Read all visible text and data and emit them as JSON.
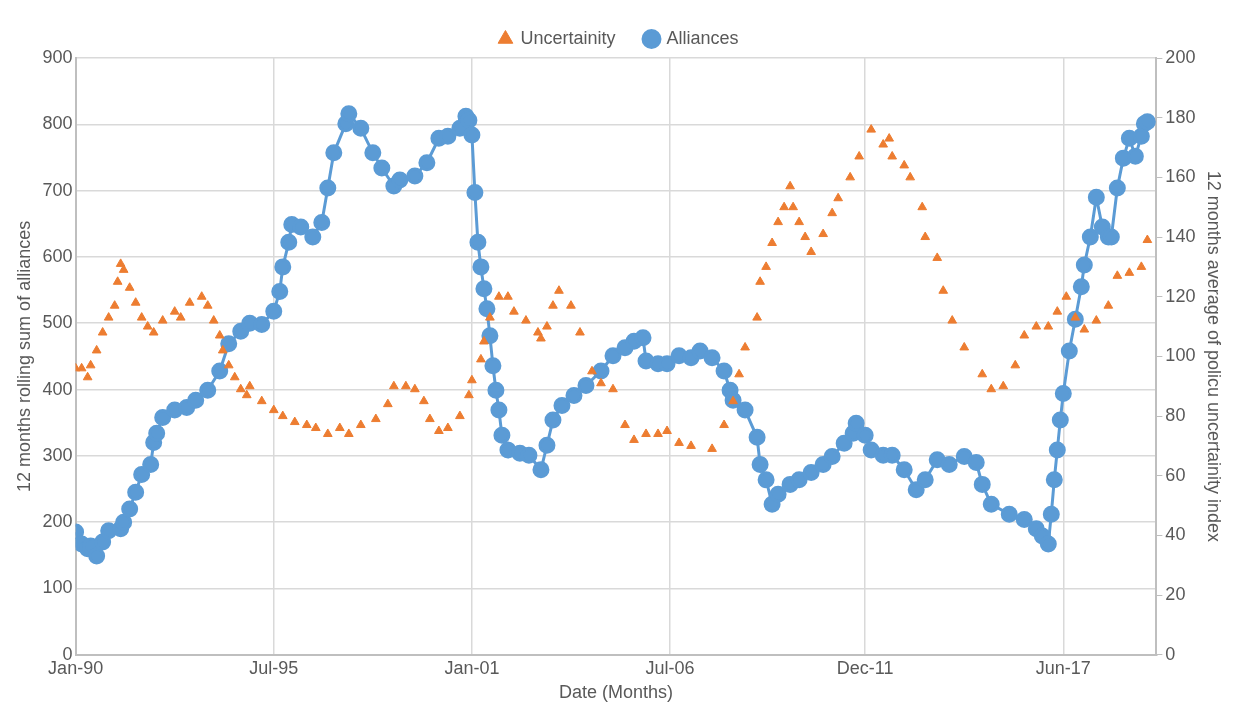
{
  "chart_data": {
    "type": "line",
    "xlabel": "Date (Months)",
    "ylabel": "12 months rolling sum of alliances",
    "y2label": "12 months average of policu uncertainity index",
    "xlim": [
      "1990-01",
      "2020-01"
    ],
    "xticks": [
      {
        "value": "1990-01",
        "label": "Jan-90"
      },
      {
        "value": "1995-07",
        "label": "Jul-95"
      },
      {
        "value": "2001-01",
        "label": "Jan-01"
      },
      {
        "value": "2006-07",
        "label": "Jul-06"
      },
      {
        "value": "2011-12",
        "label": "Dec-11"
      },
      {
        "value": "2017-06",
        "label": "Jun-17"
      }
    ],
    "ylim": [
      0,
      900
    ],
    "yticks": [
      0,
      100,
      200,
      300,
      400,
      500,
      600,
      700,
      800,
      900
    ],
    "y2lim": [
      0,
      200
    ],
    "y2ticks": [
      0,
      20,
      40,
      60,
      80,
      100,
      120,
      140,
      160,
      180,
      200
    ],
    "grid": true,
    "legend": "top",
    "series": [
      {
        "name": "Alliances",
        "marker": "circle",
        "color": "#5b9bd5",
        "x": [
          "1990-01",
          "1990-03",
          "1990-05",
          "1990-06",
          "1990-08",
          "1990-10",
          "1990-12",
          "1991-04",
          "1991-05",
          "1991-07",
          "1991-09",
          "1991-11",
          "1992-02",
          "1992-03",
          "1992-04",
          "1992-06",
          "1992-10",
          "1993-02",
          "1993-05",
          "1993-09",
          "1994-01",
          "1994-04",
          "1994-08",
          "1994-11",
          "1995-03",
          "1995-07",
          "1995-09",
          "1995-10",
          "1995-12",
          "1996-01",
          "1996-04",
          "1996-08",
          "1996-11",
          "1997-01",
          "1997-03",
          "1997-07",
          "1997-08",
          "1997-12",
          "1998-04",
          "1998-07",
          "1998-11",
          "1999-01",
          "1999-06",
          "1999-10",
          "2000-02",
          "2000-05",
          "2000-09",
          "2000-11",
          "2000-12",
          "2001-01",
          "2001-02",
          "2001-03",
          "2001-04",
          "2001-05",
          "2001-06",
          "2001-07",
          "2001-08",
          "2001-09",
          "2001-10",
          "2001-11",
          "2002-01",
          "2002-05",
          "2002-08",
          "2002-12",
          "2003-02",
          "2003-04",
          "2003-07",
          "2003-11",
          "2004-03",
          "2004-08",
          "2004-12",
          "2005-04",
          "2005-07",
          "2005-10",
          "2005-11",
          "2006-03",
          "2006-06",
          "2006-10",
          "2007-02",
          "2007-05",
          "2007-09",
          "2008-01",
          "2008-03",
          "2008-04",
          "2008-08",
          "2008-12",
          "2009-01",
          "2009-03",
          "2009-05",
          "2009-07",
          "2009-11",
          "2010-02",
          "2010-06",
          "2010-10",
          "2011-01",
          "2011-05",
          "2011-08",
          "2011-09",
          "2011-12",
          "2012-02",
          "2012-06",
          "2012-09",
          "2013-01",
          "2013-05",
          "2013-08",
          "2013-12",
          "2014-04",
          "2014-09",
          "2015-01",
          "2015-03",
          "2015-06",
          "2015-12",
          "2016-05",
          "2016-09",
          "2016-11",
          "2017-01",
          "2017-02",
          "2017-03",
          "2017-04",
          "2017-05",
          "2017-06",
          "2017-08",
          "2017-10",
          "2017-12",
          "2018-01",
          "2018-03",
          "2018-05",
          "2018-07",
          "2018-09",
          "2018-10",
          "2018-12",
          "2019-02",
          "2019-04",
          "2019-06",
          "2019-08",
          "2019-09",
          "2019-10"
        ],
        "values": [
          185,
          167,
          160,
          164,
          149,
          170,
          187,
          190,
          200,
          220,
          245,
          272,
          287,
          320,
          334,
          358,
          369,
          373,
          384,
          399,
          428,
          469,
          488,
          500,
          498,
          518,
          548,
          585,
          622,
          649,
          645,
          630,
          652,
          704,
          757,
          801,
          816,
          794,
          757,
          734,
          707,
          716,
          722,
          742,
          779,
          782,
          794,
          812,
          806,
          784,
          697,
          622,
          585,
          552,
          522,
          481,
          436,
          399,
          369,
          331,
          309,
          304,
          301,
          279,
          316,
          354,
          376,
          391,
          406,
          428,
          451,
          463,
          473,
          478,
          443,
          439,
          439,
          451,
          448,
          458,
          448,
          428,
          399,
          384,
          369,
          328,
          287,
          264,
          227,
          242,
          257,
          264,
          275,
          287,
          299,
          319,
          334,
          349,
          331,
          309,
          301,
          301,
          279,
          249,
          264,
          294,
          287,
          299,
          290,
          257,
          227,
          212,
          204,
          190,
          179,
          167,
          212,
          264,
          309,
          354,
          394,
          458,
          506,
          555,
          588,
          630,
          690,
          645,
          630,
          630,
          704,
          749,
          779,
          752,
          782,
          801,
          804
        ]
      },
      {
        "name": "Uncertainity",
        "type": "scatter",
        "marker": "triangle",
        "axis": "y2",
        "color": "#ed7d31",
        "x": [
          "1990-01",
          "1990-03",
          "1990-05",
          "1990-06",
          "1990-08",
          "1990-10",
          "1990-12",
          "1991-02",
          "1991-03",
          "1991-04",
          "1991-05",
          "1991-07",
          "1991-09",
          "1991-11",
          "1992-01",
          "1992-03",
          "1992-06",
          "1992-10",
          "1992-12",
          "1993-03",
          "1993-07",
          "1993-09",
          "1993-11",
          "1994-01",
          "1994-02",
          "1994-04",
          "1994-06",
          "1994-08",
          "1994-10",
          "1994-11",
          "1995-03",
          "1995-07",
          "1995-10",
          "1996-02",
          "1996-06",
          "1996-09",
          "1997-01",
          "1997-05",
          "1997-08",
          "1997-12",
          "1998-05",
          "1998-09",
          "1998-11",
          "1999-03",
          "1999-06",
          "1999-09",
          "1999-11",
          "2000-02",
          "2000-05",
          "2000-09",
          "2000-12",
          "2001-01",
          "2001-04",
          "2001-05",
          "2001-07",
          "2001-10",
          "2002-01",
          "2002-03",
          "2002-07",
          "2002-11",
          "2002-12",
          "2003-02",
          "2003-04",
          "2003-06",
          "2003-10",
          "2004-01",
          "2004-05",
          "2004-08",
          "2004-12",
          "2005-04",
          "2005-07",
          "2005-11",
          "2006-03",
          "2006-06",
          "2006-10",
          "2007-02",
          "2007-09",
          "2008-01",
          "2008-04",
          "2008-06",
          "2008-08",
          "2008-12",
          "2009-01",
          "2009-03",
          "2009-05",
          "2009-07",
          "2009-09",
          "2009-11",
          "2009-12",
          "2010-02",
          "2010-04",
          "2010-06",
          "2010-10",
          "2011-01",
          "2011-03",
          "2011-07",
          "2011-10",
          "2012-02",
          "2012-06",
          "2012-08",
          "2012-09",
          "2013-01",
          "2013-03",
          "2013-07",
          "2013-08",
          "2013-12",
          "2014-02",
          "2014-05",
          "2014-09",
          "2015-03",
          "2015-06",
          "2015-10",
          "2016-02",
          "2016-05",
          "2016-09",
          "2017-01",
          "2017-04",
          "2017-07",
          "2017-10",
          "2018-01",
          "2018-05",
          "2018-09",
          "2018-12",
          "2019-04",
          "2019-08",
          "2019-10"
        ],
        "values": [
          96,
          96,
          93,
          97,
          102,
          108,
          113,
          117,
          125,
          131,
          129,
          123,
          118,
          113,
          110,
          108,
          112,
          115,
          113,
          118,
          120,
          117,
          112,
          107,
          102,
          97,
          93,
          89,
          87,
          90,
          85,
          82,
          80,
          78,
          77,
          76,
          74,
          76,
          74,
          77,
          79,
          84,
          90,
          90,
          89,
          85,
          79,
          75,
          76,
          80,
          87,
          92,
          99,
          105,
          113,
          120,
          120,
          115,
          112,
          108,
          106,
          110,
          117,
          122,
          117,
          108,
          95,
          91,
          89,
          77,
          72,
          74,
          74,
          75,
          71,
          70,
          69,
          77,
          85,
          94,
          103,
          113,
          125,
          130,
          138,
          145,
          150,
          157,
          150,
          145,
          140,
          135,
          141,
          148,
          153,
          160,
          167,
          176,
          171,
          173,
          167,
          164,
          160,
          150,
          140,
          133,
          122,
          112,
          103,
          94,
          89,
          90,
          97,
          107,
          110,
          110,
          115,
          120,
          113,
          109,
          112,
          117,
          127,
          128,
          130,
          139
        ]
      }
    ]
  }
}
